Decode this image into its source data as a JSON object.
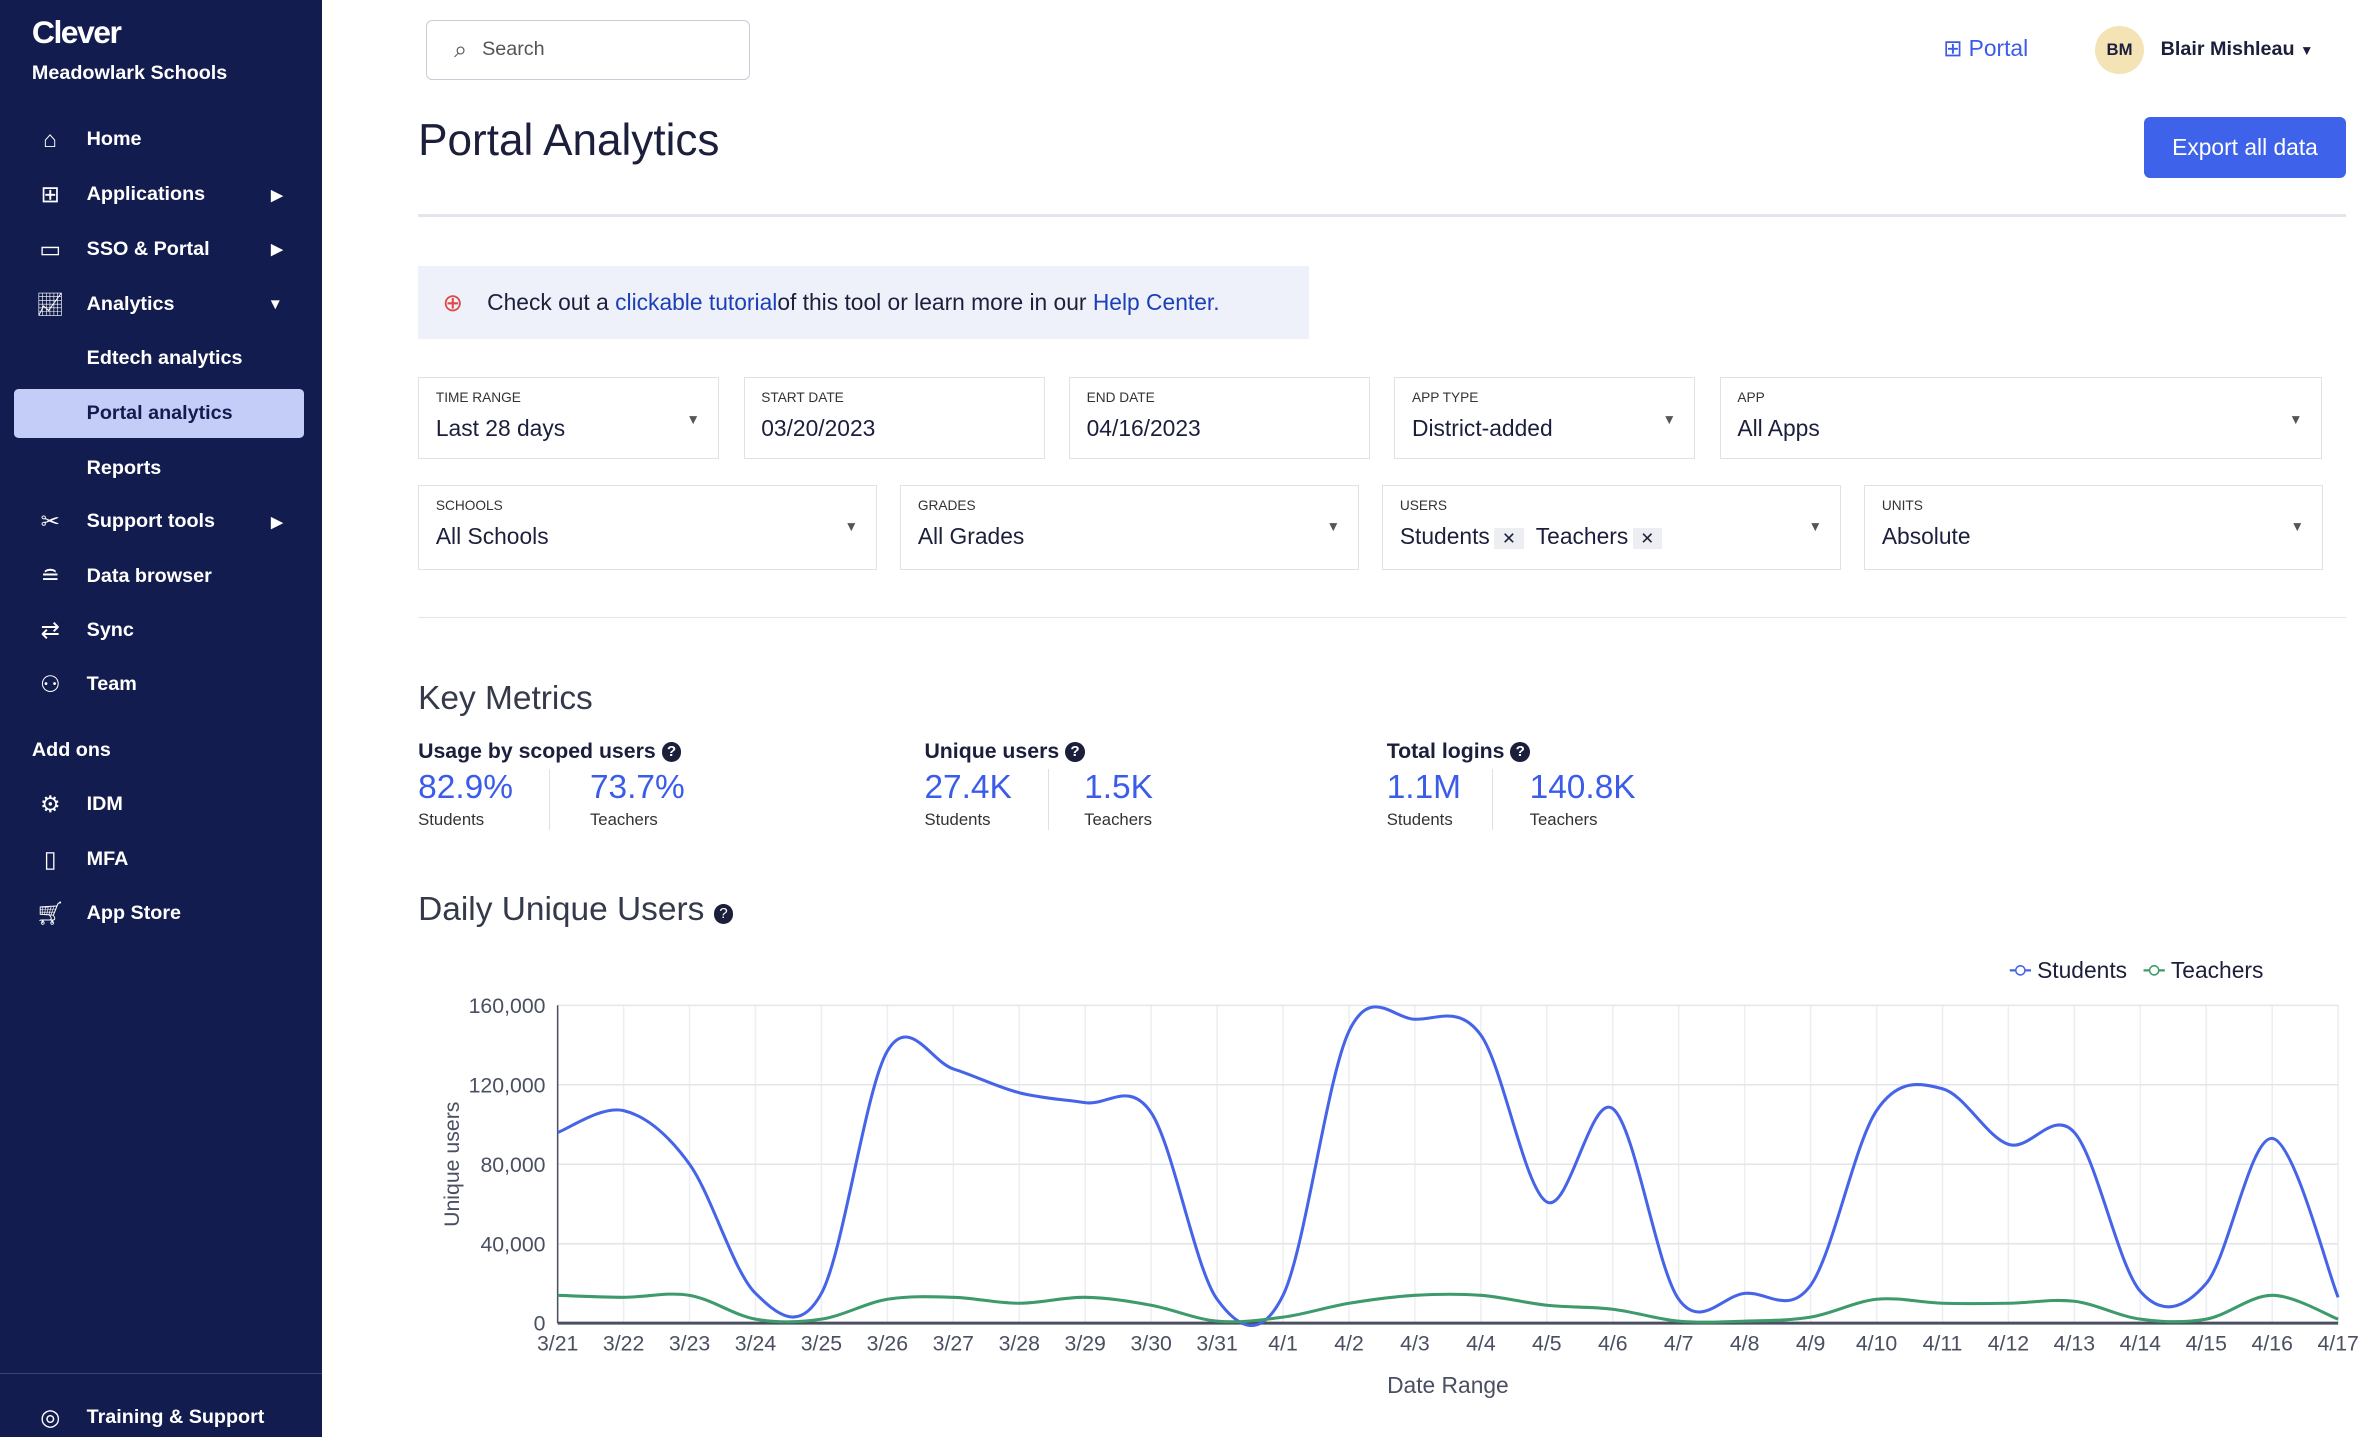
{
  "sidebar": {
    "brand": "Clever",
    "org": "Meadowlark Schools",
    "items": [
      {
        "label": "Home",
        "icon": "school-icon"
      },
      {
        "label": "Applications",
        "icon": "apps-icon"
      },
      {
        "label": "SSO & Portal",
        "icon": "laptop-icon"
      },
      {
        "label": "Analytics",
        "icon": "chart-icon"
      },
      {
        "label": "Edtech analytics"
      },
      {
        "label": "Portal analytics"
      },
      {
        "label": "Reports"
      },
      {
        "label": "Support tools",
        "icon": "tools-icon"
      },
      {
        "label": "Data browser",
        "icon": "database-icon"
      },
      {
        "label": "Sync",
        "icon": "sync-icon"
      },
      {
        "label": "Team",
        "icon": "team-icon"
      }
    ],
    "addons_title": "Add ons",
    "addons": [
      {
        "label": "IDM"
      },
      {
        "label": "MFA"
      },
      {
        "label": "App Store"
      }
    ],
    "footer": "Training & Support"
  },
  "header": {
    "search_placeholder": "Search",
    "portal": "Portal",
    "avatar": "BM",
    "user": "Blair Mishleau"
  },
  "page": {
    "title": "Portal Analytics",
    "export": "Export all data"
  },
  "banner": {
    "t1": "Check out a ",
    "link1": "clickable tutorial",
    "t2": " of this tool or learn more in our ",
    "link2": "Help Center."
  },
  "filters": {
    "time_range": {
      "label": "TIME RANGE",
      "value": "Last 28 days"
    },
    "start": {
      "label": "START DATE",
      "value": "03/20/2023"
    },
    "end": {
      "label": "END DATE",
      "value": "04/16/2023"
    },
    "app_type": {
      "label": "APP TYPE",
      "value": "District-added"
    },
    "app": {
      "label": "APP",
      "value": "All Apps"
    },
    "schools": {
      "label": "SCHOOLS",
      "value": "All Schools"
    },
    "grades": {
      "label": "GRADES",
      "value": "All Grades"
    },
    "users": {
      "label": "USERS",
      "chips": [
        "Students",
        "Teachers"
      ]
    },
    "units": {
      "label": "UNITS",
      "value": "Absolute"
    }
  },
  "metrics": {
    "title": "Key Metrics",
    "usage": {
      "label": "Usage by scoped users",
      "a": "82.9%",
      "a_sub": "Students",
      "b": "73.7%",
      "b_sub": "Teachers"
    },
    "unique": {
      "label": "Unique users",
      "a": "27.4K",
      "a_sub": "Students",
      "b": "1.5K",
      "b_sub": "Teachers"
    },
    "logins": {
      "label": "Total logins",
      "a": "1.1M",
      "a_sub": "Students",
      "b": "140.8K",
      "b_sub": "Teachers"
    }
  },
  "chart_data": {
    "type": "line",
    "title": "Daily Unique Users",
    "xlabel": "Date Range",
    "ylabel": "Unique users",
    "ylim": [
      0,
      160000
    ],
    "legend": "top-right",
    "yticks": [
      "0",
      "40,000",
      "80,000",
      "120,000",
      "160,000"
    ],
    "categories": [
      "3/21",
      "3/22",
      "3/23",
      "3/24",
      "3/25",
      "3/26",
      "3/27",
      "3/28",
      "3/29",
      "3/30",
      "3/31",
      "4/1",
      "4/2",
      "4/3",
      "4/4",
      "4/5",
      "4/6",
      "4/7",
      "4/8",
      "4/9",
      "4/10",
      "4/11",
      "4/12",
      "4/13",
      "4/14",
      "4/15",
      "4/16",
      "4/17"
    ],
    "series": [
      {
        "name": "Students",
        "color": "#4664e8",
        "values": [
          96000,
          107000,
          80000,
          15000,
          15000,
          137000,
          128000,
          116000,
          111000,
          106000,
          12000,
          14000,
          147000,
          153000,
          145000,
          61000,
          108000,
          12000,
          15000,
          19000,
          107000,
          118000,
          90000,
          96000,
          16000,
          20000,
          93000,
          13000
        ]
      },
      {
        "name": "Teachers",
        "color": "#3d9a6a",
        "values": [
          14000,
          13000,
          14000,
          2000,
          2000,
          12000,
          13000,
          10000,
          13000,
          9000,
          1000,
          3000,
          10000,
          14000,
          14000,
          9000,
          7000,
          1000,
          1000,
          3000,
          12000,
          10000,
          10000,
          11000,
          2000,
          2000,
          14000,
          2000
        ]
      }
    ]
  }
}
